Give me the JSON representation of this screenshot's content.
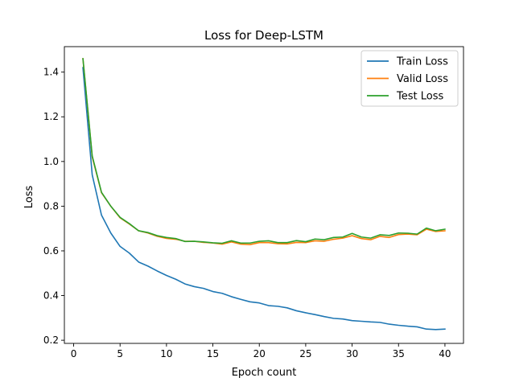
{
  "chart_data": {
    "type": "line",
    "title": "Loss for Deep-LSTM",
    "xlabel": "Epoch count",
    "ylabel": "Loss",
    "xlim": [
      -1,
      42
    ],
    "ylim": [
      0.186,
      1.514
    ],
    "xticks": [
      0,
      5,
      10,
      15,
      20,
      25,
      30,
      35,
      40
    ],
    "yticks": [
      0.2,
      0.4,
      0.6,
      0.8,
      1.0,
      1.2,
      1.4
    ],
    "ytick_labels": [
      "0.2",
      "0.4",
      "0.6",
      "0.8",
      "1.0",
      "1.2",
      "1.4"
    ],
    "grid": false,
    "legend_position": "top-right",
    "x": [
      1,
      2,
      3,
      4,
      5,
      6,
      7,
      8,
      9,
      10,
      11,
      12,
      13,
      14,
      15,
      16,
      17,
      18,
      19,
      20,
      21,
      22,
      23,
      24,
      25,
      26,
      27,
      28,
      29,
      30,
      31,
      32,
      33,
      34,
      35,
      36,
      37,
      38,
      39,
      40
    ],
    "series": [
      {
        "name": "Train Loss",
        "color": "#1f77b4",
        "values": [
          1.42,
          0.94,
          0.76,
          0.68,
          0.62,
          0.59,
          0.55,
          0.532,
          0.51,
          0.49,
          0.473,
          0.452,
          0.44,
          0.432,
          0.418,
          0.41,
          0.395,
          0.383,
          0.372,
          0.367,
          0.355,
          0.352,
          0.345,
          0.332,
          0.323,
          0.315,
          0.306,
          0.298,
          0.295,
          0.288,
          0.285,
          0.282,
          0.28,
          0.272,
          0.267,
          0.263,
          0.26,
          0.25,
          0.248,
          0.25
        ]
      },
      {
        "name": "Valid Loss",
        "color": "#ff7f0e",
        "values": [
          1.46,
          1.02,
          0.86,
          0.8,
          0.748,
          0.72,
          0.69,
          0.68,
          0.665,
          0.656,
          0.652,
          0.643,
          0.643,
          0.638,
          0.635,
          0.63,
          0.64,
          0.63,
          0.628,
          0.637,
          0.637,
          0.632,
          0.631,
          0.638,
          0.637,
          0.645,
          0.643,
          0.652,
          0.657,
          0.668,
          0.655,
          0.65,
          0.665,
          0.66,
          0.673,
          0.675,
          0.672,
          0.697,
          0.687,
          0.69
        ]
      },
      {
        "name": "Test Loss",
        "color": "#2ca02c",
        "values": [
          1.46,
          1.025,
          0.862,
          0.8,
          0.75,
          0.722,
          0.69,
          0.682,
          0.668,
          0.66,
          0.655,
          0.642,
          0.643,
          0.64,
          0.636,
          0.634,
          0.645,
          0.635,
          0.635,
          0.643,
          0.645,
          0.637,
          0.637,
          0.646,
          0.641,
          0.653,
          0.65,
          0.66,
          0.662,
          0.678,
          0.662,
          0.657,
          0.672,
          0.669,
          0.68,
          0.679,
          0.675,
          0.702,
          0.69,
          0.697
        ]
      }
    ]
  }
}
